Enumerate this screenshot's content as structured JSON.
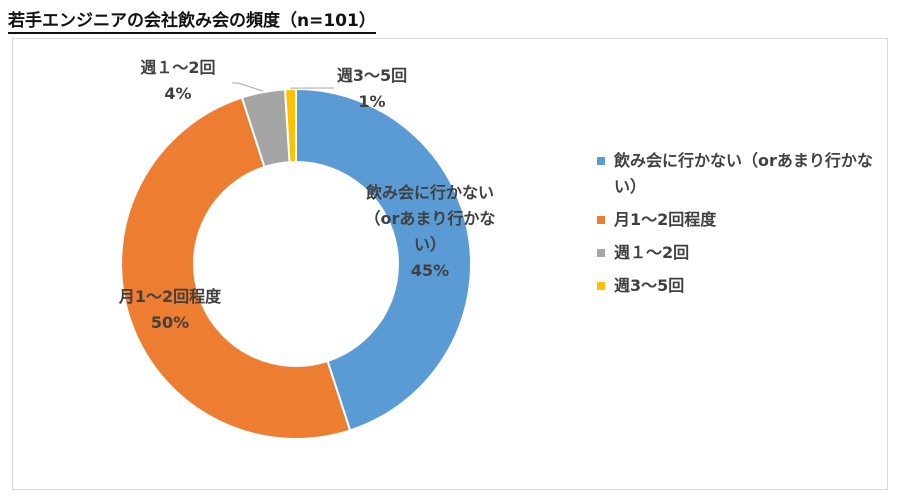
{
  "title": "若手エンジニアの会社飲み会の頻度（n=101）",
  "colors": {
    "blue": "#5B9BD5",
    "orange": "#ED7D31",
    "gray": "#A5A5A5",
    "yellow": "#FFC000"
  },
  "chart_data": {
    "type": "pie",
    "variant": "doughnut",
    "title": "若手エンジニアの会社飲み会の頻度（n=101）",
    "categories": [
      "飲み会に行かない（orあまり行かない）",
      "月1～2回程度",
      "週１～2回",
      "週3～5回"
    ],
    "values": [
      45,
      50,
      4,
      1
    ],
    "value_labels": [
      "45%",
      "50%",
      "4%",
      "1%"
    ],
    "colors": [
      "#5B9BD5",
      "#ED7D31",
      "#A5A5A5",
      "#FFC000"
    ],
    "legend_position": "right",
    "data_labels": [
      {
        "lines": [
          "飲み会に行かない",
          "（orあまり行かな",
          "い）"
        ],
        "value": "45%"
      },
      {
        "lines": [
          "月1～2回程度"
        ],
        "value": "50%"
      },
      {
        "lines": [
          "週１～2回"
        ],
        "value": "4%"
      },
      {
        "lines": [
          "週3～5回"
        ],
        "value": "1%"
      }
    ]
  },
  "legend": {
    "items": [
      {
        "label": "飲み会に行かない（orあまり行かない）",
        "color": "#5B9BD5"
      },
      {
        "label": "月1～2回程度",
        "color": "#ED7D31"
      },
      {
        "label": "週１～2回",
        "color": "#A5A5A5"
      },
      {
        "label": "週3～5回",
        "color": "#FFC000"
      }
    ]
  }
}
